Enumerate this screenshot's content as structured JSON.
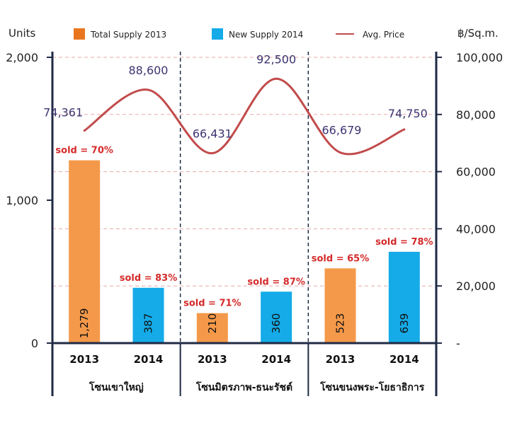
{
  "chart_data": {
    "type": "bar",
    "left_axis": {
      "unit_label": "Units",
      "range": [
        0,
        2000
      ],
      "ticks": [
        {
          "value": 0,
          "label": "0"
        },
        {
          "value": 1000,
          "label": "1,000"
        },
        {
          "value": 2000,
          "label": "2,000"
        }
      ]
    },
    "right_axis": {
      "unit_label": "฿/Sq.m.",
      "range": [
        0,
        100000
      ],
      "ticks": [
        {
          "value": 0,
          "label": "-"
        },
        {
          "value": 20000,
          "label": "20,000"
        },
        {
          "value": 40000,
          "label": "40,000"
        },
        {
          "value": 60000,
          "label": "60,000"
        },
        {
          "value": 80000,
          "label": "80,000"
        },
        {
          "value": 100000,
          "label": "100,000"
        }
      ]
    },
    "legend": {
      "placement": "top",
      "items": [
        {
          "label": "Total Supply 2013",
          "kind": "bar",
          "color": "#e9761f"
        },
        {
          "label": "New Supply 2014",
          "kind": "bar",
          "color": "#14abe8"
        },
        {
          "label": "Avg. Price",
          "kind": "line",
          "color": "#c24b4b"
        }
      ]
    },
    "groups": [
      {
        "zone": "โซนเขาใหญ่",
        "bars": [
          {
            "year": "2013",
            "series": "Total Supply 2013",
            "value": 1279,
            "value_label": "1,279",
            "sold": "sold = 70%",
            "price": 74361,
            "price_label": "74,361"
          },
          {
            "year": "2014",
            "series": "New Supply 2014",
            "value": 387,
            "value_label": "387",
            "sold": "sold = 83%",
            "price": 88600,
            "price_label": "88,600"
          }
        ]
      },
      {
        "zone": "โซนมิตรภาพ-ธนะรัชต์",
        "bars": [
          {
            "year": "2013",
            "series": "Total Supply 2013",
            "value": 210,
            "value_label": "210",
            "sold": "sold = 71%",
            "price": 66431,
            "price_label": "66,431"
          },
          {
            "year": "2014",
            "series": "New Supply 2014",
            "value": 360,
            "value_label": "360",
            "sold": "sold = 87%",
            "price": 92500,
            "price_label": "92,500"
          }
        ]
      },
      {
        "zone": "โซนขนงพระ-โยธาธิการ",
        "bars": [
          {
            "year": "2013",
            "series": "Total Supply 2013",
            "value": 523,
            "value_label": "523",
            "sold": "sold = 65%",
            "price": 66679,
            "price_label": "66,679"
          },
          {
            "year": "2014",
            "series": "New Supply 2014",
            "value": 639,
            "value_label": "639",
            "sold": "sold = 78%",
            "price": 74750,
            "price_label": "74,750"
          }
        ]
      }
    ],
    "colors": {
      "bar_2013": "#f4994a",
      "bar_2014": "#14abe8",
      "line": "#c24b4b",
      "grid": "#e8a9a9",
      "axis": "#1f2a44"
    },
    "grid": true
  }
}
